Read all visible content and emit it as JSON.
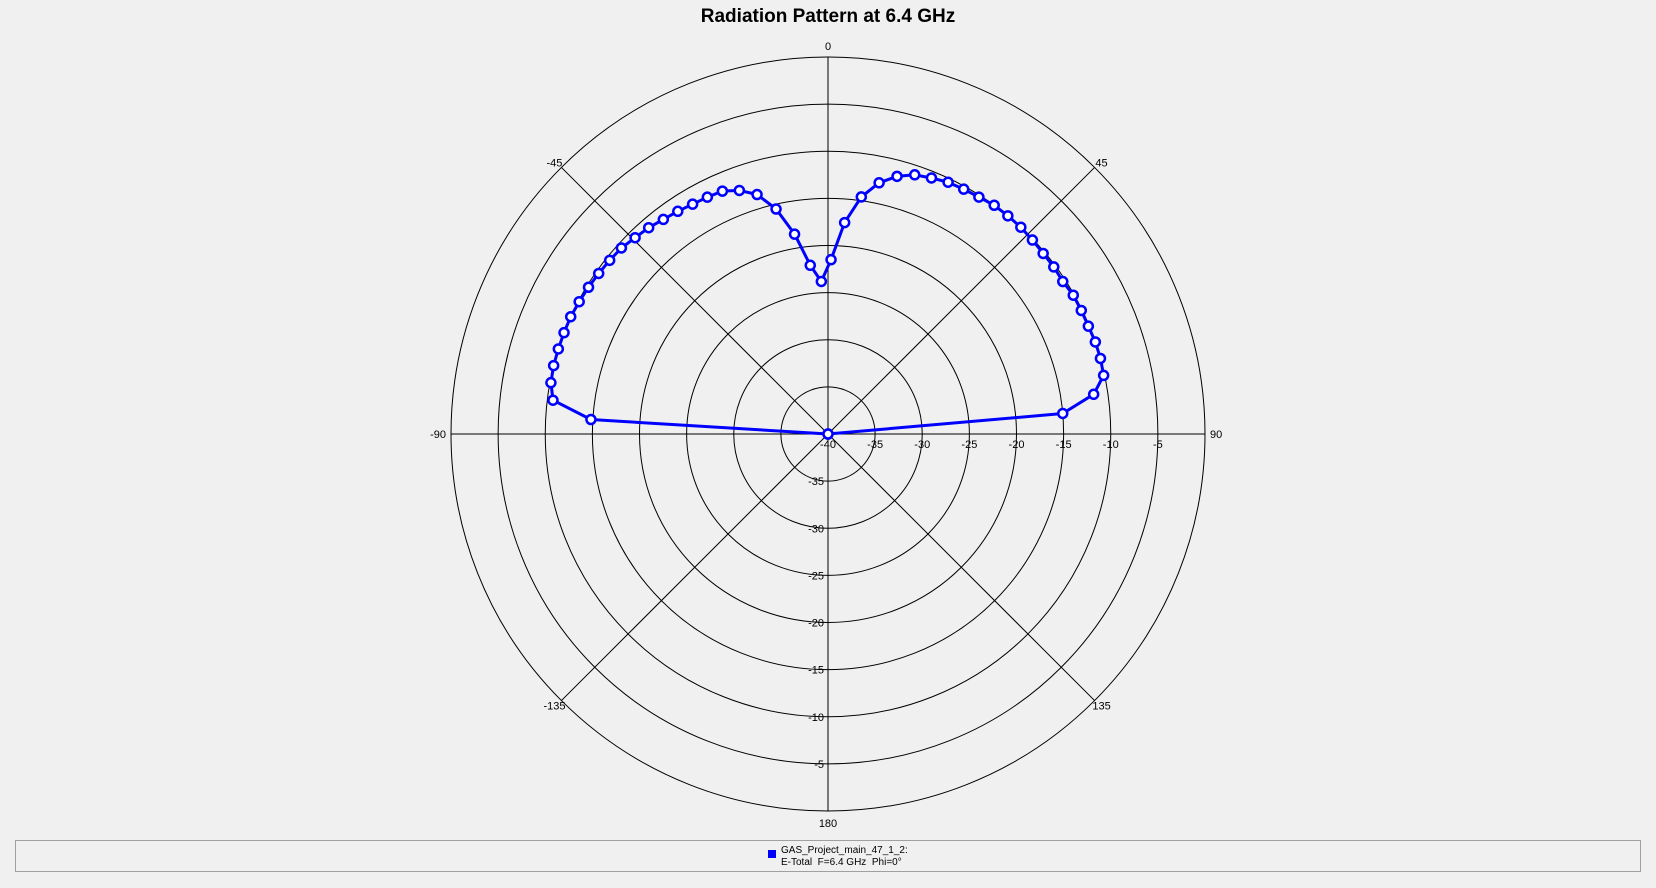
{
  "chart_data": {
    "type": "polar-line",
    "title": "Radiation Pattern at 6.4 GHz",
    "angle_ticks": [
      {
        "angle": 0,
        "label": "0"
      },
      {
        "angle": 45,
        "label": "45"
      },
      {
        "angle": 90,
        "label": "90"
      },
      {
        "angle": 135,
        "label": "135"
      },
      {
        "angle": 180,
        "label": "180"
      },
      {
        "angle": -135,
        "label": "-135"
      },
      {
        "angle": -90,
        "label": "-90"
      },
      {
        "angle": -45,
        "label": "-45"
      }
    ],
    "rlim": [
      -40,
      0
    ],
    "radial_grid": [
      -40,
      -35,
      -30,
      -25,
      -20,
      -15,
      -10,
      -5,
      0
    ],
    "radial_tick_labels_right": [
      "-40",
      "-35",
      "-30",
      "-25",
      "-20",
      "-15",
      "-10",
      "-5"
    ],
    "radial_tick_labels_down": [
      "-35",
      "-30",
      "-25",
      "-20",
      "-15",
      "-10",
      "-5"
    ],
    "grid": true,
    "legend_position": "bottom",
    "series": [
      {
        "name": "GAS_Project_main_47_1_2:",
        "name_line2": "E-Total  F=6.4 GHz  Phi=0°",
        "color": "#0000ff",
        "theta": [
          -90,
          -86.5,
          -83,
          -79.5,
          -76,
          -72.5,
          -69,
          -65.5,
          -62,
          -58.5,
          -55,
          -51.5,
          -48,
          -44.5,
          -41,
          -37.5,
          -34,
          -30.5,
          -27,
          -23.5,
          -20,
          -16.5,
          -13,
          -9.5,
          -6,
          -2.5,
          1,
          4.5,
          8,
          11.5,
          15,
          18.5,
          22,
          25.5,
          29,
          32.5,
          36,
          39.5,
          43,
          46.5,
          50,
          53.5,
          57,
          60.5,
          64,
          67.5,
          71,
          74.5,
          78,
          81.5,
          85,
          88.5
        ],
        "r": [
          -40,
          -14.8,
          -10.6,
          -10.1,
          -10.0,
          -10.0,
          -10.0,
          -10.0,
          -10.1,
          -10.2,
          -10.3,
          -10.4,
          -10.5,
          -10.8,
          -11.0,
          -11.3,
          -11.5,
          -11.7,
          -11.8,
          -11.9,
          -12.5,
          -13.5,
          -15.5,
          -18.5,
          -22.0,
          -23.8,
          -21.5,
          -17.5,
          -14.6,
          -12.8,
          -11.7,
          -11.0,
          -10.7,
          -10.4,
          -10.3,
          -10.2,
          -10.0,
          -10.0,
          -10.0,
          -10.1,
          -10.2,
          -10.2,
          -10.3,
          -10.1,
          -10.1,
          -10.1,
          -10.0,
          -10.0,
          -10.1,
          -11.5,
          -15.0,
          -40
        ]
      }
    ]
  }
}
